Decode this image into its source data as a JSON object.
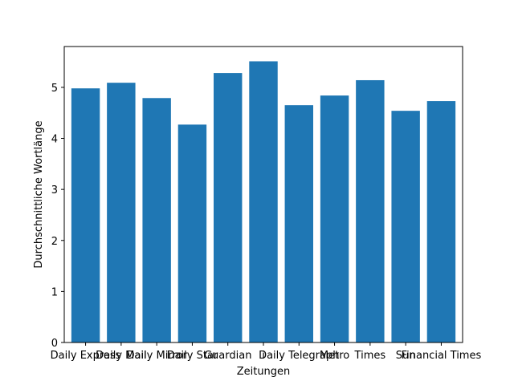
{
  "chart_data": {
    "type": "bar",
    "title": "",
    "xlabel": "Zeitungen",
    "ylabel": "Durchschnittliche Wortlänge",
    "categories": [
      "Daily Express",
      "Daily Mail",
      "Daily Mirror",
      "Daily Star",
      "Guardian",
      "i",
      "Daily Telegraph",
      "Metro",
      "Times",
      "Sun",
      "Financial Times"
    ],
    "values": [
      4.98,
      5.09,
      4.79,
      4.27,
      5.28,
      5.51,
      4.65,
      4.84,
      5.14,
      4.54,
      4.73
    ],
    "ylim": [
      0,
      5.8
    ],
    "yticks": [
      0,
      1,
      2,
      3,
      4,
      5
    ],
    "bar_color": "#1f77b4",
    "grid": false,
    "legend": "none"
  }
}
